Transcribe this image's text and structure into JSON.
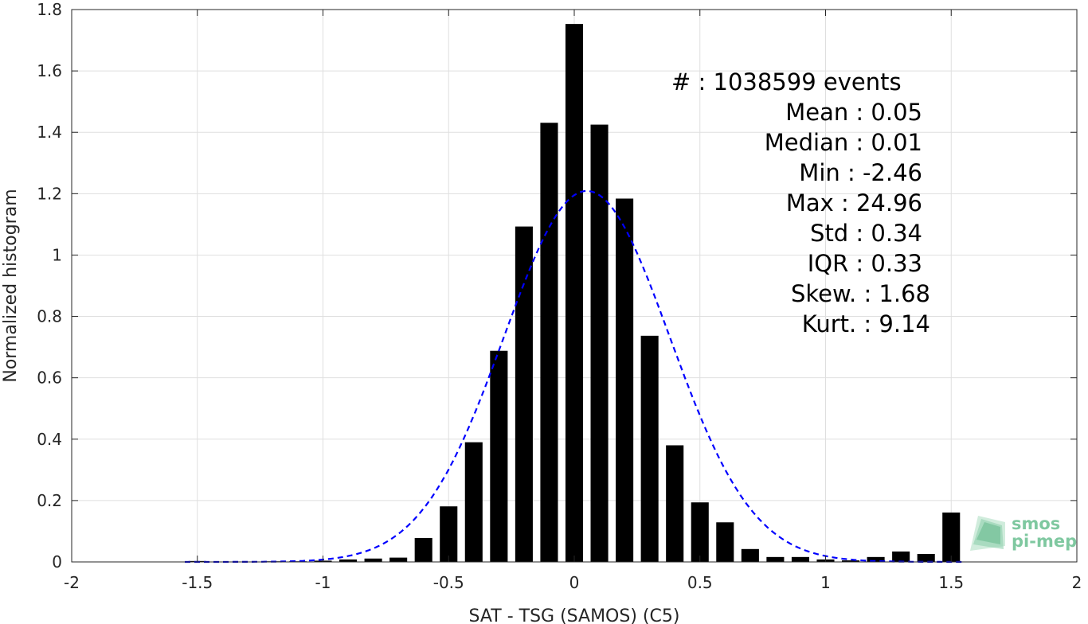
{
  "chart_data": {
    "type": "bar",
    "xlabel": "SAT - TSG (SAMOS) (C5)",
    "ylabel": "Normalized histogram",
    "xlim": [
      -2,
      2
    ],
    "ylim": [
      0,
      1.8
    ],
    "grid": true,
    "x_ticks": [
      "-2",
      "-1.5",
      "-1",
      "-0.5",
      "0",
      "0.5",
      "1",
      "1.5",
      "2"
    ],
    "y_ticks": [
      "0",
      "0.2",
      "0.4",
      "0.6",
      "0.8",
      "1",
      "1.2",
      "1.4",
      "1.6",
      "1.8"
    ],
    "bar_color": "#000000",
    "bar_width": 0.07,
    "series": [
      {
        "x": [
          -1.5,
          -1.4,
          -1.3,
          -1.2,
          -1.1,
          -1.0,
          -0.9,
          -0.8,
          -0.7,
          -0.6,
          -0.5,
          -0.4,
          -0.3,
          -0.2,
          -0.1,
          0.0,
          0.1,
          0.2,
          0.3,
          0.4,
          0.5,
          0.6,
          0.7,
          0.8,
          0.9,
          1.0,
          1.1,
          1.2,
          1.3,
          1.4,
          1.5
        ],
        "values": [
          0.003,
          0.001,
          0.001,
          0.002,
          0.002,
          0.004,
          0.008,
          0.011,
          0.014,
          0.078,
          0.181,
          0.39,
          0.688,
          1.093,
          1.431,
          1.753,
          1.425,
          1.184,
          0.737,
          0.38,
          0.194,
          0.129,
          0.042,
          0.016,
          0.016,
          0.008,
          0.005,
          0.016,
          0.034,
          0.026,
          0.161
        ]
      }
    ],
    "fit_curve": {
      "type": "normal",
      "mean": 0.05,
      "std": 0.33,
      "color": "#0000ff",
      "style": "dashed"
    },
    "annotations": [
      "#  : 1038599 events",
      "Mean : 0.05",
      "Median : 0.01",
      "Min : -2.46",
      "Max : 24.96",
      "Std : 0.34",
      "IQR : 0.33",
      "Skew. : 1.68",
      "Kurt. : 9.14"
    ]
  },
  "logo": {
    "line1": "smos",
    "line2": "pi-mep",
    "color": "#7fc8a0"
  }
}
